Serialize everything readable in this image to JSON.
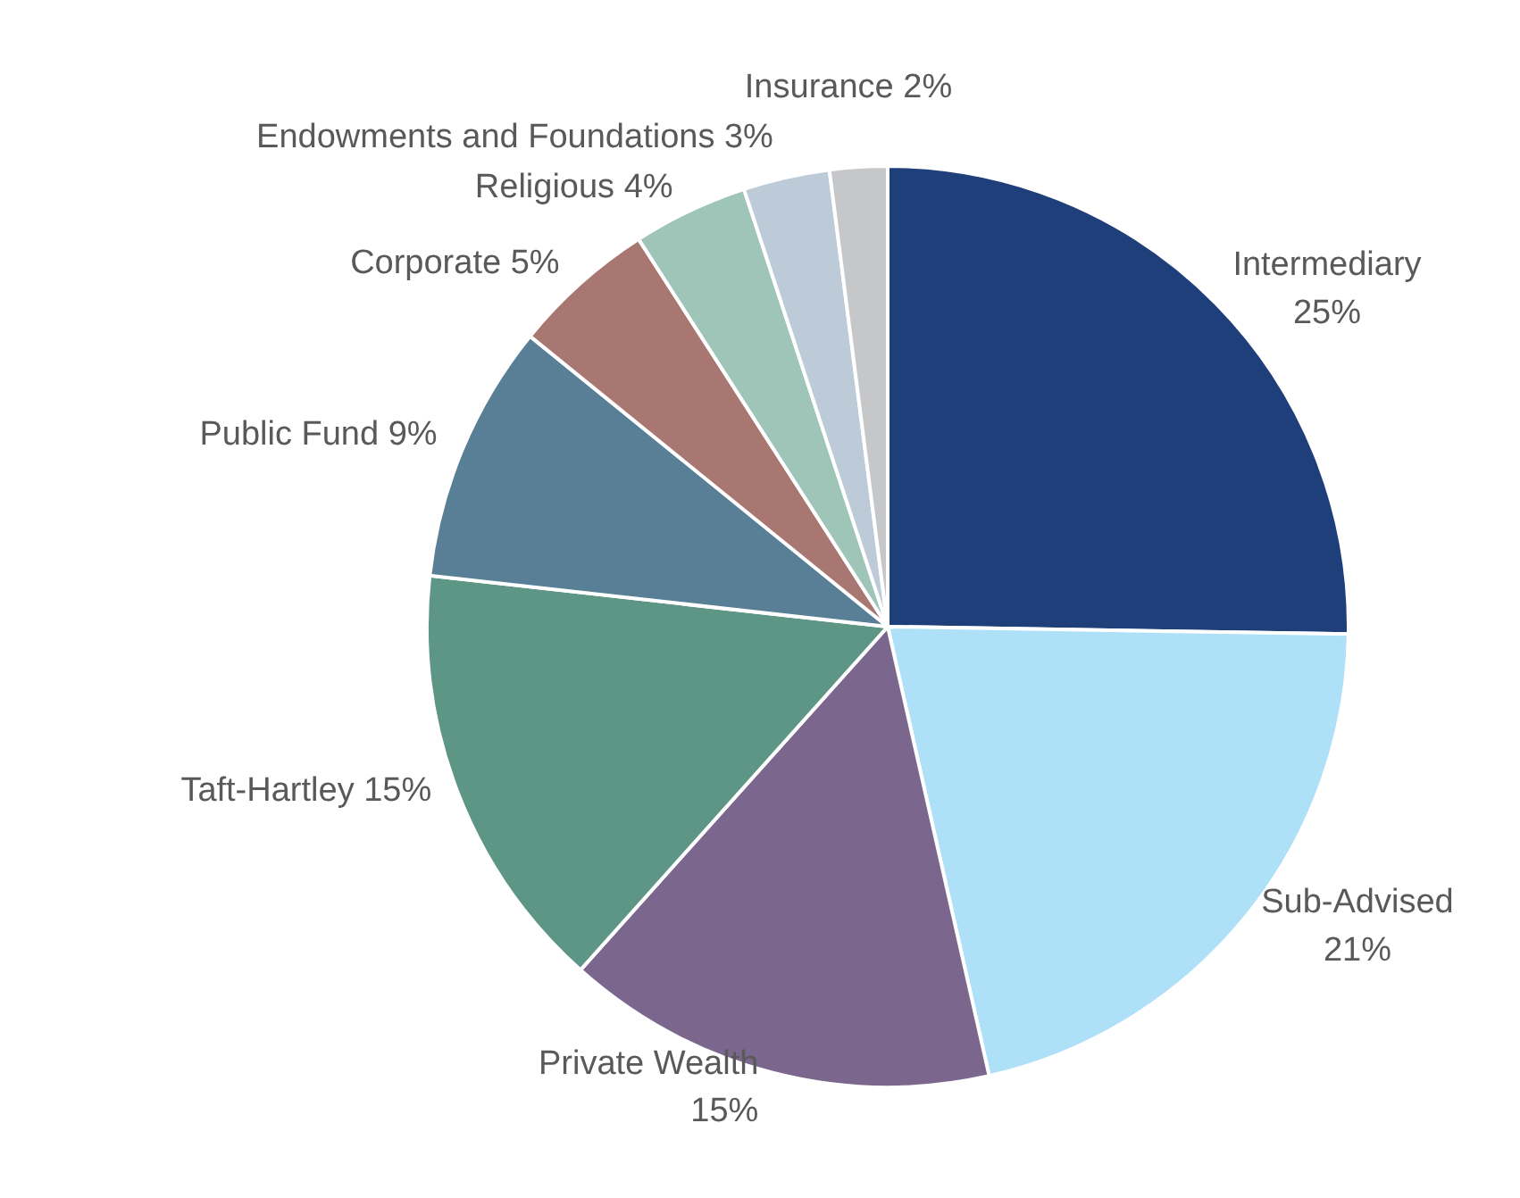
{
  "chart_data": {
    "type": "pie",
    "categories": [
      "Intermediary",
      "Sub-Advised",
      "Private Wealth",
      "Taft-Hartley",
      "Public Fund",
      "Corporate",
      "Religious",
      "Endowments and Foundations",
      "Insurance"
    ],
    "values": [
      25,
      21,
      15,
      15,
      9,
      5,
      4,
      3,
      2
    ],
    "colors": [
      "#1f3f7a",
      "#aee0f8",
      "#7b678e",
      "#5e9685",
      "#587f96",
      "#a97772",
      "#9fc4b8",
      "#bccbd7",
      "#c5c7c9"
    ],
    "value_labels": [
      "25%",
      "21%",
      "15%",
      "15%",
      "9%",
      "5%",
      "4%",
      "3%",
      "2%"
    ]
  }
}
